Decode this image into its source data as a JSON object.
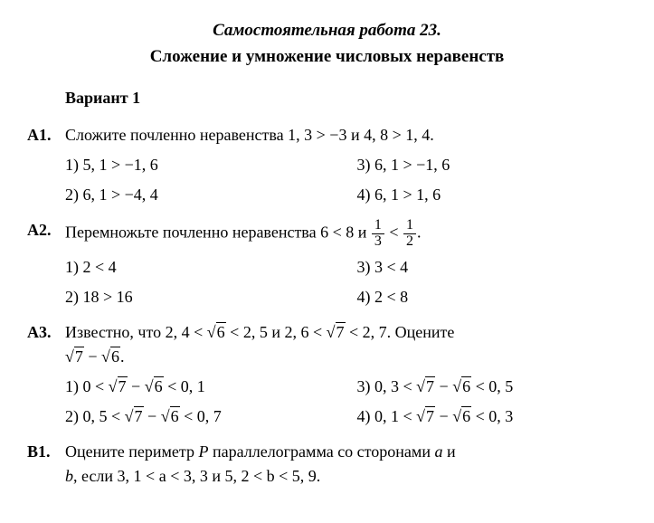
{
  "title": "Самостоятельная работа 23.",
  "subtitle": "Сложение и умножение числовых неравенств",
  "variant": "Вариант 1",
  "tasks": {
    "A1": {
      "label": "А1.",
      "prompt_prefix": "Сложите почленно неравенства ",
      "ineq1": "1, 3 > −3",
      "joiner": " и ",
      "ineq2": "4, 8 > 1, 4.",
      "options": {
        "o1": "1)  5, 1 > −1, 6",
        "o3": "3)  6, 1 > −1, 6",
        "o2": "2)  6, 1 > −4, 4",
        "o4": "4)  6, 1 > 1, 6"
      }
    },
    "A2": {
      "label": "А2.",
      "prompt_prefix": "Перемножьте почленно неравенства ",
      "ineq1": "6 < 8",
      "joiner": " и ",
      "frac1_num": "1",
      "frac1_den": "3",
      "lt": " < ",
      "frac2_num": "1",
      "frac2_den": "2",
      "period": ".",
      "options": {
        "o1": "1)  2 < 4",
        "o3": "3)  3 < 4",
        "o2": "2)  18 > 16",
        "o4": "4)  2 < 8"
      }
    },
    "A3": {
      "label": "А3.",
      "pprefix": "Известно, что ",
      "p_a": "2, 4 < ",
      "sqrt6": "6",
      "p_b": " < 2, 5",
      "joiner": " и ",
      "p_c": "2, 6 < ",
      "sqrt7": "7",
      "p_d": " < 2, 7.",
      "estimate": " Оцените",
      "expr_mid": " − ",
      "period": ".",
      "o1a": "1)  0 < ",
      "o1b": " < 0, 1",
      "o3a": "3)  0, 3 < ",
      "o3b": " < 0, 5",
      "o2a": "2)  0, 5 < ",
      "o2b": " < 0, 7",
      "o4a": "4)  0, 1 < ",
      "o4b": " < 0, 3"
    },
    "B1": {
      "label": "В1.",
      "line1a": "Оцените периметр ",
      "P": "P",
      "line1b": " параллелограмма со сторонами ",
      "a": "a",
      "line1c": " и",
      "line2a": "b",
      "line2b": ", если ",
      "ineq_a": "3, 1 < a < 3, 3",
      "joiner": " и ",
      "ineq_b": "5, 2 < b < 5, 9."
    }
  }
}
